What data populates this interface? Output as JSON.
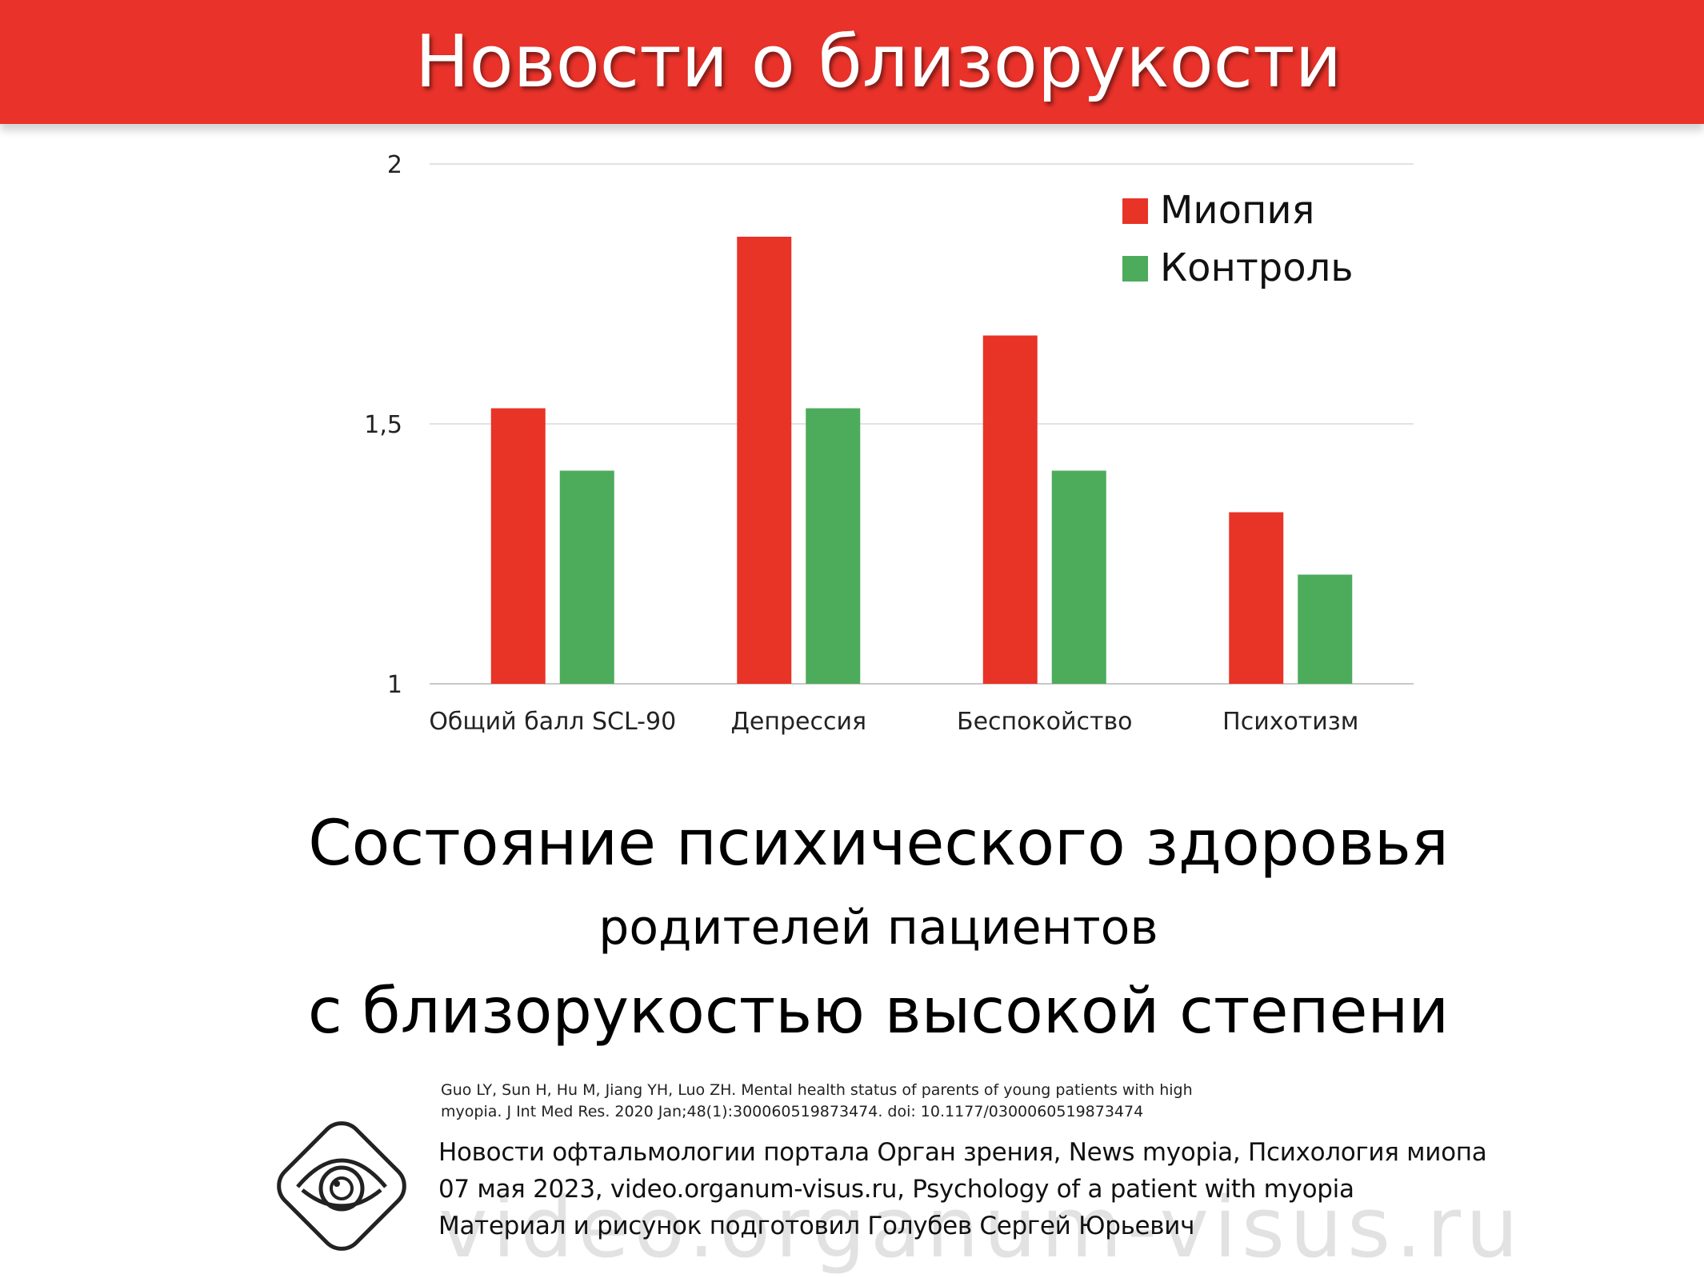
{
  "header": {
    "title": "Новости о близорукости"
  },
  "colors": {
    "brand_red": "#e8322a",
    "myopia": "#e83327",
    "control": "#4dab5c"
  },
  "chart_data": {
    "type": "bar",
    "categories": [
      "Общий балл SCL-90",
      "Депрессия",
      "Беспокойство",
      "Психотизм"
    ],
    "series": [
      {
        "name": "Миопия",
        "values": [
          1.53,
          1.86,
          1.67,
          1.33
        ],
        "color": "#e83327"
      },
      {
        "name": "Контроль",
        "values": [
          1.41,
          1.53,
          1.41,
          1.21
        ],
        "color": "#4dab5c"
      }
    ],
    "ylim": [
      1,
      2
    ],
    "yticks": [
      1,
      1.5,
      2
    ],
    "ytick_labels": [
      "1",
      "1,5",
      "2"
    ],
    "grid": true,
    "legend": "top-right"
  },
  "subtitle": {
    "line1": "Состояние психического здоровья",
    "line2": "родителей пациентов",
    "line3": "с близорукостью высокой степени"
  },
  "citation": {
    "line1": "Guo LY, Sun H, Hu M, Jiang YH, Luo ZH. Mental health status of parents of young patients with high",
    "line2": "myopia. J Int Med Res. 2020 Jan;48(1):300060519873474. doi: 10.1177/0300060519873474"
  },
  "footer": {
    "line1": "Новости офтальмологии портала Орган зрения, News myopia, Психология миопа",
    "line2": "07 мая 2023, video.organum-visus.ru, Psychology of a patient with myopia",
    "line3": "Материал и рисунок подготовил Голубев Сергей Юрьевич"
  },
  "watermark": "video.organum-visus.ru",
  "logo_icon": "eye-icon"
}
